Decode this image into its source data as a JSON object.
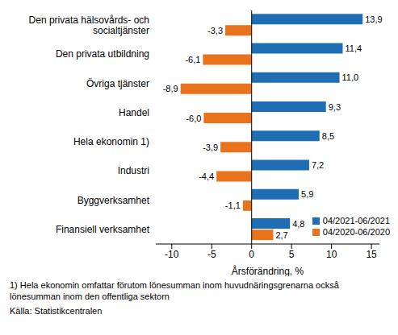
{
  "chart_data": {
    "type": "bar",
    "orientation": "horizontal",
    "categories": [
      "Den privata hälsovårds- och\nsocialtjänster",
      "Den privata utbildning",
      "Övriga tjänster",
      "Handel",
      "Hela ekonomin 1)",
      "Industri",
      "Byggverksamhet",
      "Finansiell verksamhet"
    ],
    "series": [
      {
        "name": "04/2021-06/2021",
        "color": "#1f6eb3",
        "values": [
          13.9,
          11.4,
          11.0,
          9.3,
          8.5,
          7.2,
          5.9,
          4.8
        ],
        "value_labels": [
          "13,9",
          "11,4",
          "11,0",
          "9,3",
          "8,5",
          "7,2",
          "5,9",
          "4,8"
        ]
      },
      {
        "name": "04/2020-06/2020",
        "color": "#e8731c",
        "values": [
          -3.3,
          -6.1,
          -8.9,
          -6.0,
          -3.9,
          -4.4,
          -1.1,
          2.7
        ],
        "value_labels": [
          "-3,3",
          "-6,1",
          "-8,9",
          "-6,0",
          "-3,9",
          "-4,4",
          "-1,1",
          "2,7"
        ]
      }
    ],
    "x_label": "Årsförändring, %",
    "xlim": [
      -12,
      16
    ],
    "xticks": [
      -10,
      -5,
      0,
      5,
      10,
      15
    ],
    "data_labels": true,
    "grid": false,
    "legend": "lower right",
    "notes": [
      "1) Hela ekonomin omfattar förutom lönesumman inom huvudnäringsgrenarna också lönesumman inom den offentliga sektorn",
      "Källa: Statistikcentralen"
    ]
  }
}
